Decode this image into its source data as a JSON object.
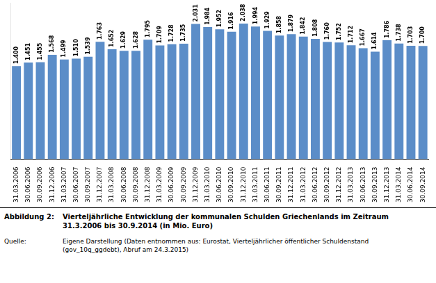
{
  "chart_data": {
    "type": "bar",
    "categories": [
      "31.03.2006",
      "30.06.2006",
      "30.09.2006",
      "31.12.2006",
      "31.03.2007",
      "30.06.2007",
      "30.09.2007",
      "31.12.2007",
      "31.03.2008",
      "30.06.2008",
      "30.09.2008",
      "31.12.2008",
      "31.03.2009",
      "30.06.2009",
      "30.09.2009",
      "31.12.2009",
      "31.03.2010",
      "30.06.2010",
      "30.09.2010",
      "31.12.2010",
      "31.03.2011",
      "30.06.2011",
      "30.09.2011",
      "31.12.2011",
      "31.03.2012",
      "30.06.2012",
      "30.09.2012",
      "31.12.2012",
      "31.03.2013",
      "30.06.2013",
      "30.09.2013",
      "31.12.2013",
      "31.03.2014",
      "30.06.2014",
      "30.09.2014"
    ],
    "values": [
      1.4,
      1.451,
      1.455,
      1.568,
      1.499,
      1.51,
      1.539,
      1.763,
      1.652,
      1.629,
      1.628,
      1.795,
      1.709,
      1.728,
      1.735,
      2.031,
      1.984,
      1.952,
      1.916,
      2.038,
      1.994,
      1.929,
      1.858,
      1.879,
      1.842,
      1.808,
      1.76,
      1.752,
      1.712,
      1.667,
      1.614,
      1.786,
      1.738,
      1.703,
      1.7
    ],
    "value_labels": [
      "1.400",
      "1.451",
      "1.455",
      "1.568",
      "1.499",
      "1.510",
      "1.539",
      "1.763",
      "1.652",
      "1.629",
      "1.628",
      "1.795",
      "1.709",
      "1.728",
      "1.735",
      "2.031",
      "1.984",
      "1.952",
      "1.916",
      "2.038",
      "1.994",
      "1.929",
      "1.858",
      "1.879",
      "1.842",
      "1.808",
      "1.760",
      "1.752",
      "1.712",
      "1.667",
      "1.614",
      "1.786",
      "1.738",
      "1.703",
      "1.700"
    ],
    "color": "#5B8DC8",
    "ylim": [
      0,
      2.35
    ],
    "data_labels": true,
    "tick_labels": "x",
    "grid": false,
    "annotations": [
      "Abbildung 2:",
      "Vierteljährliche Entwicklung der kommunalen Schulden Griechenlands im Zeitraum\n31.3.2006 bis 30.9.2014 (in Mio. Euro)",
      "Quelle:",
      "Eigene Darstellung (Daten entnommen aus: Eurostat, Vierteljährlicher öffentlicher Schuldenstand\n(gov_10q_ggdebt), Abruf am 24.3.2015)"
    ]
  }
}
